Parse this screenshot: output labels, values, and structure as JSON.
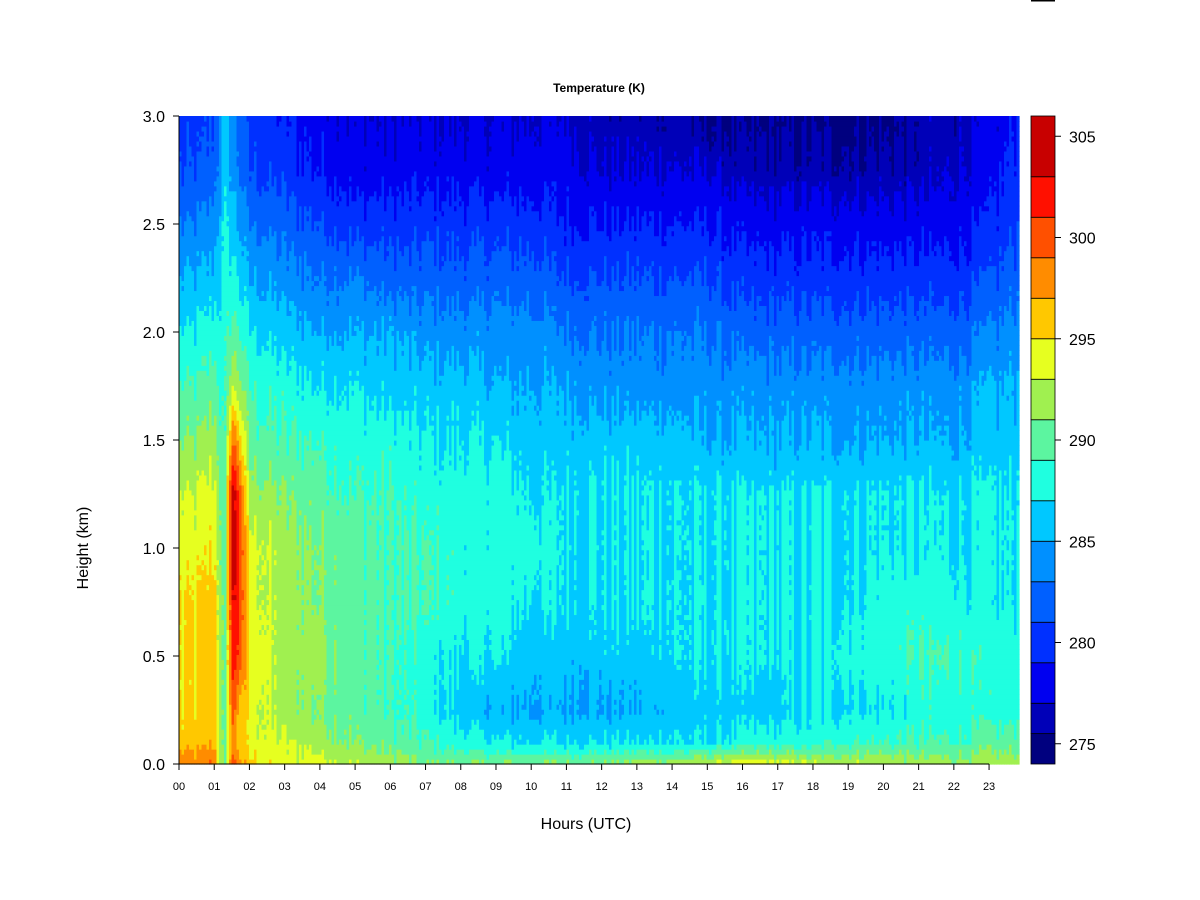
{
  "chart_data": {
    "type": "heatmap",
    "title": "Temperature (K)",
    "xlabel": "Hours (UTC)",
    "ylabel": "Height (km)",
    "xlim": [
      0,
      23.85
    ],
    "ylim": [
      0,
      3.0
    ],
    "x_ticks": [
      "00",
      "01",
      "02",
      "03",
      "04",
      "05",
      "06",
      "07",
      "08",
      "09",
      "10",
      "11",
      "12",
      "13",
      "14",
      "15",
      "16",
      "17",
      "18",
      "19",
      "20",
      "21",
      "22",
      "23"
    ],
    "y_ticks": [
      "0.0",
      "0.5",
      "1.0",
      "1.5",
      "2.0",
      "2.5",
      "3.0"
    ],
    "colorbar": {
      "label_ticks": [
        "275",
        "280",
        "285",
        "290",
        "295",
        "300",
        "305"
      ],
      "levels": [
        274,
        275.5,
        277,
        279,
        281,
        283,
        285,
        287,
        289,
        291,
        293,
        295,
        297,
        299,
        301,
        303,
        306
      ],
      "colors": [
        "#00007f",
        "#0000b8",
        "#0000f0",
        "#0030ff",
        "#0060ff",
        "#0090ff",
        "#00c8ff",
        "#1fffe0",
        "#5cf5a0",
        "#a0f050",
        "#e6ff20",
        "#ffc800",
        "#ff8c00",
        "#ff5000",
        "#ff1000",
        "#c80000",
        "#7f0000"
      ]
    },
    "z_grid": {
      "x_hours": [
        0,
        0.5,
        1.0,
        1.3,
        1.5,
        1.7,
        2.0,
        3,
        4,
        5,
        6,
        7,
        8,
        9,
        10,
        11,
        12,
        13,
        14,
        15,
        16,
        17,
        18,
        19,
        20,
        21,
        22,
        23,
        23.85
      ],
      "y_km": [
        0,
        0.1,
        0.25,
        0.5,
        0.75,
        1.0,
        1.25,
        1.5,
        1.75,
        2.0,
        2.25,
        2.5,
        2.75,
        3.0
      ],
      "values_K": [
        [
          298,
          298,
          299,
          289,
          301,
          298,
          296,
          294,
          294,
          293,
          292,
          291,
          291,
          291,
          291,
          291,
          291,
          292,
          292,
          293,
          294,
          294,
          293,
          293,
          293,
          292,
          292,
          292,
          292
        ],
        [
          296,
          296,
          297,
          289,
          298,
          296,
          294,
          293,
          292,
          291,
          290,
          289,
          288,
          287,
          287,
          287,
          287,
          287,
          287,
          287,
          288,
          288,
          288,
          289,
          289,
          289,
          289,
          290,
          290
        ],
        [
          295,
          295,
          296,
          289,
          300,
          297,
          294,
          292,
          291,
          290,
          289,
          288,
          286,
          285,
          285,
          285,
          285,
          285,
          286,
          286,
          286,
          286,
          287,
          287,
          287,
          288,
          288,
          288,
          288
        ],
        [
          295,
          295,
          296,
          289,
          302,
          301,
          295,
          292,
          292,
          290,
          289,
          288,
          287,
          287,
          286,
          286,
          286,
          286,
          287,
          287,
          287,
          287,
          287,
          288,
          288,
          289,
          289,
          288,
          288
        ],
        [
          295,
          295,
          296,
          289,
          303,
          302,
          294,
          292,
          291,
          290,
          289,
          289,
          288,
          288,
          287,
          287,
          287,
          287,
          287,
          287,
          287,
          287,
          287,
          287,
          288,
          288,
          288,
          287,
          287
        ],
        [
          294,
          294,
          295,
          289,
          304,
          302,
          294,
          292,
          291,
          290,
          289,
          289,
          288,
          288,
          288,
          287,
          287,
          287,
          287,
          287,
          287,
          287,
          287,
          287,
          287,
          287,
          287,
          287,
          287
        ],
        [
          293,
          293,
          294,
          289,
          304,
          301,
          292,
          291,
          290,
          289,
          289,
          288,
          288,
          288,
          287,
          287,
          287,
          287,
          287,
          287,
          287,
          287,
          287,
          287,
          287,
          287,
          287,
          287,
          287
        ],
        [
          291,
          291,
          292,
          288,
          299,
          297,
          290,
          289,
          289,
          288,
          288,
          287,
          287,
          287,
          286,
          286,
          286,
          286,
          286,
          285,
          285,
          285,
          285,
          285,
          285,
          285,
          285,
          286,
          286
        ],
        [
          289,
          289,
          290,
          288,
          293,
          292,
          289,
          288,
          287,
          287,
          286,
          286,
          286,
          285,
          285,
          285,
          284,
          284,
          284,
          284,
          284,
          284,
          284,
          284,
          284,
          284,
          284,
          285,
          285
        ],
        [
          287,
          287,
          288,
          288,
          290,
          289,
          287,
          286,
          285,
          285,
          285,
          284,
          284,
          284,
          284,
          283,
          283,
          283,
          283,
          283,
          282,
          282,
          282,
          282,
          282,
          282,
          282,
          283,
          284
        ],
        [
          285,
          285,
          286,
          287,
          288,
          287,
          285,
          284,
          283,
          283,
          282,
          282,
          282,
          282,
          282,
          281,
          281,
          281,
          281,
          281,
          280,
          280,
          280,
          280,
          280,
          280,
          280,
          281,
          282
        ],
        [
          283,
          283,
          284,
          287,
          286,
          285,
          283,
          282,
          281,
          280,
          280,
          280,
          280,
          280,
          280,
          279,
          279,
          279,
          279,
          279,
          278,
          278,
          278,
          278,
          278,
          278,
          278,
          279,
          281
        ],
        [
          281,
          281,
          282,
          286,
          285,
          283,
          281,
          280,
          279,
          278,
          278,
          278,
          278,
          278,
          278,
          278,
          277,
          277,
          277,
          277,
          276,
          276,
          276,
          276,
          276,
          276,
          277,
          278,
          280
        ],
        [
          280,
          280,
          281,
          286,
          284,
          282,
          280,
          279,
          278,
          277,
          277,
          277,
          277,
          277,
          277,
          277,
          276,
          276,
          276,
          275,
          275,
          275,
          275,
          275,
          275,
          276,
          276,
          277,
          279
        ]
      ]
    }
  }
}
